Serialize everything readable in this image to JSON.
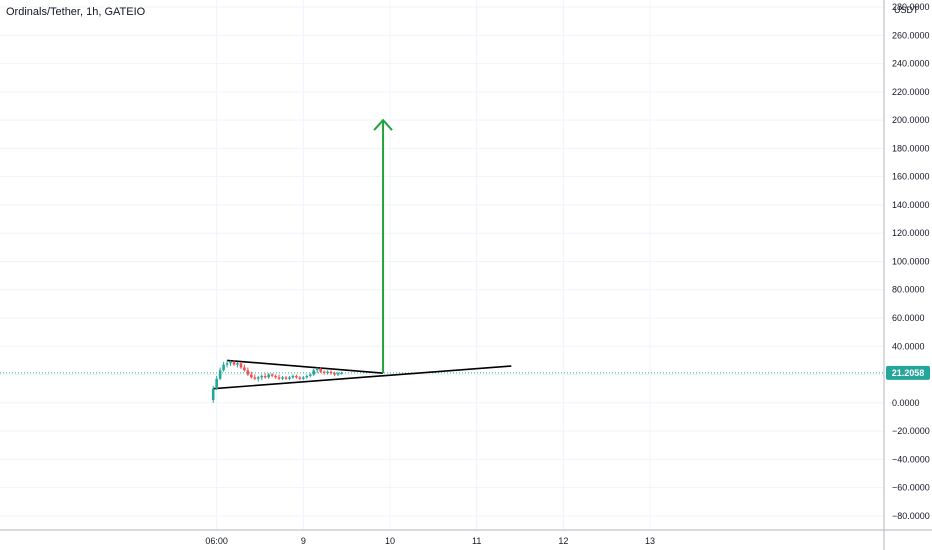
{
  "header": {
    "title": "Ordinals/Tether, 1h, GATEIO"
  },
  "colors": {
    "grid": "#f0f3fa",
    "axis": "#b2b5be",
    "up": "#26a69a",
    "down": "#ef5350",
    "arrow": "#22a33a",
    "trendline": "#000000",
    "price_badge": "#26a69a"
  },
  "chart_data": {
    "type": "candlestick",
    "title": "Ordinals/Tether, 1h, GATEIO",
    "y_unit": "USDT",
    "ylim": [
      -90,
      285
    ],
    "y_ticks": [
      "280.0000",
      "260.0000",
      "240.0000",
      "220.0000",
      "200.0000",
      "180.0000",
      "160.0000",
      "140.0000",
      "120.0000",
      "100.0000",
      "80.0000",
      "60.0000",
      "40.0000",
      "20.0000",
      "0.0000",
      "−20.0000",
      "−40.0000",
      "−60.0000",
      "−80.0000"
    ],
    "y_tick_values": [
      280,
      260,
      240,
      220,
      200,
      180,
      160,
      140,
      120,
      100,
      80,
      60,
      40,
      20,
      0,
      -20,
      -40,
      -60,
      -80
    ],
    "xlim": [
      -2.5,
      7.7
    ],
    "x_ticks": [
      "06:00",
      "9",
      "10",
      "11",
      "12",
      "13"
    ],
    "x_tick_values": [
      0,
      1.0,
      2.0,
      3.0,
      4.0,
      5.0
    ],
    "last_price": "21.2058",
    "last_price_value": 21.2058,
    "candles": [
      {
        "t": -0.04,
        "o": 2,
        "h": 12,
        "l": 0,
        "c": 10
      },
      {
        "t": 0.0,
        "o": 10,
        "h": 19,
        "l": 9,
        "c": 17
      },
      {
        "t": 0.04,
        "o": 17,
        "h": 25,
        "l": 16,
        "c": 23
      },
      {
        "t": 0.08,
        "o": 23,
        "h": 29,
        "l": 22,
        "c": 27
      },
      {
        "t": 0.12,
        "o": 27,
        "h": 30,
        "l": 25,
        "c": 28
      },
      {
        "t": 0.16,
        "o": 28,
        "h": 30,
        "l": 26,
        "c": 29
      },
      {
        "t": 0.2,
        "o": 29,
        "h": 30,
        "l": 26,
        "c": 27
      },
      {
        "t": 0.24,
        "o": 27,
        "h": 29,
        "l": 25,
        "c": 28
      },
      {
        "t": 0.28,
        "o": 28,
        "h": 29,
        "l": 24,
        "c": 25
      },
      {
        "t": 0.32,
        "o": 25,
        "h": 27,
        "l": 22,
        "c": 23
      },
      {
        "t": 0.36,
        "o": 23,
        "h": 25,
        "l": 19,
        "c": 20
      },
      {
        "t": 0.4,
        "o": 20,
        "h": 22,
        "l": 17,
        "c": 18
      },
      {
        "t": 0.44,
        "o": 18,
        "h": 20,
        "l": 16,
        "c": 17
      },
      {
        "t": 0.48,
        "o": 17,
        "h": 19,
        "l": 15,
        "c": 18
      },
      {
        "t": 0.52,
        "o": 18,
        "h": 20,
        "l": 16,
        "c": 19
      },
      {
        "t": 0.56,
        "o": 19,
        "h": 21,
        "l": 17,
        "c": 18
      },
      {
        "t": 0.6,
        "o": 18,
        "h": 21,
        "l": 17,
        "c": 20
      },
      {
        "t": 0.64,
        "o": 20,
        "h": 21,
        "l": 18,
        "c": 19
      },
      {
        "t": 0.68,
        "o": 19,
        "h": 20,
        "l": 17,
        "c": 18
      },
      {
        "t": 0.72,
        "o": 18,
        "h": 20,
        "l": 16,
        "c": 17
      },
      {
        "t": 0.76,
        "o": 17,
        "h": 19,
        "l": 16,
        "c": 18
      },
      {
        "t": 0.8,
        "o": 18,
        "h": 19,
        "l": 16,
        "c": 17
      },
      {
        "t": 0.84,
        "o": 17,
        "h": 19,
        "l": 16,
        "c": 18
      },
      {
        "t": 0.88,
        "o": 18,
        "h": 20,
        "l": 17,
        "c": 19
      },
      {
        "t": 0.92,
        "o": 19,
        "h": 20,
        "l": 17,
        "c": 18
      },
      {
        "t": 0.96,
        "o": 18,
        "h": 19,
        "l": 16,
        "c": 17
      },
      {
        "t": 1.0,
        "o": 17,
        "h": 19,
        "l": 16,
        "c": 18
      },
      {
        "t": 1.04,
        "o": 18,
        "h": 20,
        "l": 17,
        "c": 19
      },
      {
        "t": 1.08,
        "o": 19,
        "h": 21,
        "l": 18,
        "c": 20
      },
      {
        "t": 1.12,
        "o": 20,
        "h": 24,
        "l": 19,
        "c": 23
      },
      {
        "t": 1.16,
        "o": 23,
        "h": 25,
        "l": 21,
        "c": 24
      },
      {
        "t": 1.2,
        "o": 24,
        "h": 25,
        "l": 21,
        "c": 22
      },
      {
        "t": 1.24,
        "o": 22,
        "h": 23,
        "l": 20,
        "c": 21
      },
      {
        "t": 1.28,
        "o": 21,
        "h": 23,
        "l": 20,
        "c": 22
      },
      {
        "t": 1.32,
        "o": 22,
        "h": 23,
        "l": 20,
        "c": 21
      },
      {
        "t": 1.36,
        "o": 21,
        "h": 22,
        "l": 19,
        "c": 20
      },
      {
        "t": 1.4,
        "o": 20,
        "h": 22,
        "l": 19,
        "c": 21
      },
      {
        "t": 1.44,
        "o": 21,
        "h": 22,
        "l": 20,
        "c": 21
      }
    ],
    "drawings": {
      "upper_trendline": {
        "from": {
          "t": 0.12,
          "p": 30
        },
        "to": {
          "t": 1.92,
          "p": 21
        }
      },
      "lower_trendline": {
        "from": {
          "t": -0.04,
          "p": 10
        },
        "to": {
          "t": 3.4,
          "p": 26
        }
      },
      "target_arrow": {
        "from": {
          "t": 1.92,
          "p": 21
        },
        "to": {
          "t": 1.92,
          "p": 200
        }
      }
    }
  }
}
